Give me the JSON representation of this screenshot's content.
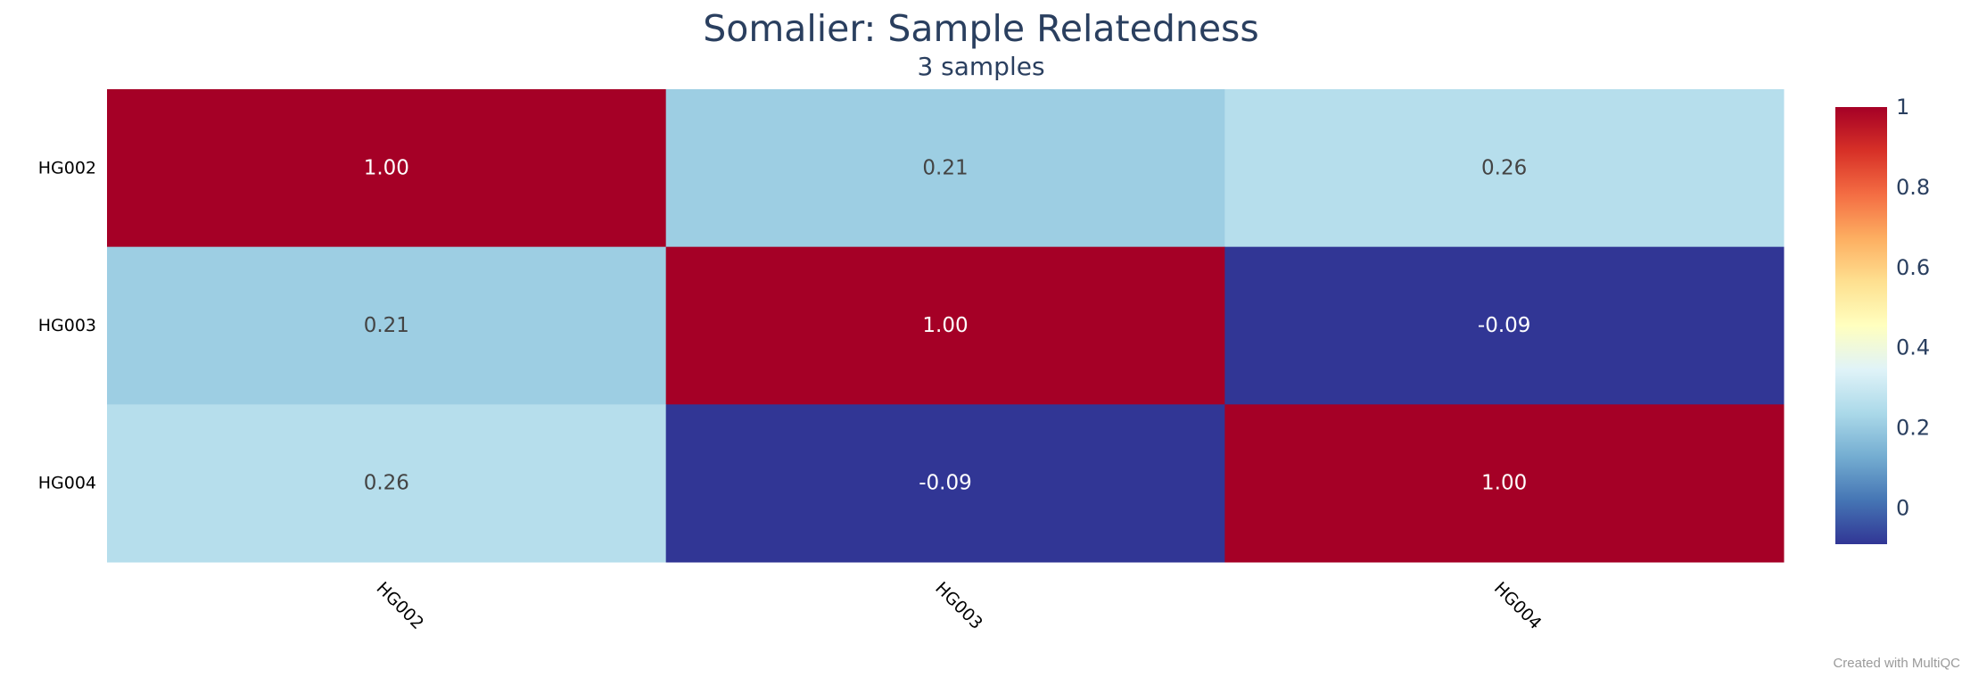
{
  "chart_data": {
    "type": "heatmap",
    "title": "Somalier: Sample Relatedness",
    "subtitle": "3 samples",
    "rows": [
      "HG002",
      "HG003",
      "HG004"
    ],
    "columns": [
      "HG002",
      "HG003",
      "HG004"
    ],
    "values": [
      [
        1.0,
        0.21,
        0.26
      ],
      [
        0.21,
        1.0,
        -0.09
      ],
      [
        0.26,
        -0.09,
        1.0
      ]
    ],
    "value_labels": [
      [
        "1.00",
        "0.21",
        "0.26"
      ],
      [
        "0.21",
        "1.00",
        "-0.09"
      ],
      [
        "0.26",
        "-0.09",
        "1.00"
      ]
    ],
    "colorscale": {
      "name": "RdYlBu (reversed)",
      "range": [
        -0.09,
        1.0
      ],
      "stops": [
        [
          0.0,
          "#313695"
        ],
        [
          0.1,
          "#4575b4"
        ],
        [
          0.2,
          "#74add1"
        ],
        [
          0.3,
          "#abd9e9"
        ],
        [
          0.4,
          "#e0f3f8"
        ],
        [
          0.5,
          "#ffffbf"
        ],
        [
          0.6,
          "#fee090"
        ],
        [
          0.7,
          "#fdae61"
        ],
        [
          0.8,
          "#f46d43"
        ],
        [
          0.9,
          "#d73027"
        ],
        [
          1.0,
          "#a50026"
        ]
      ],
      "ticks": [
        0,
        0.2,
        0.4,
        0.6,
        0.8,
        1
      ],
      "tick_labels": [
        "0",
        "0.2",
        "0.4",
        "0.6",
        "0.8",
        "1"
      ]
    },
    "xtick_rotation": "45deg",
    "legend_placement": "right",
    "grid": false
  },
  "watermark": "Created with MultiQC",
  "colors": {
    "title": "#2a3f5f",
    "axis_text": "#000000",
    "light_cell_text": "#444444",
    "dark_cell_text": "#ffffff"
  }
}
